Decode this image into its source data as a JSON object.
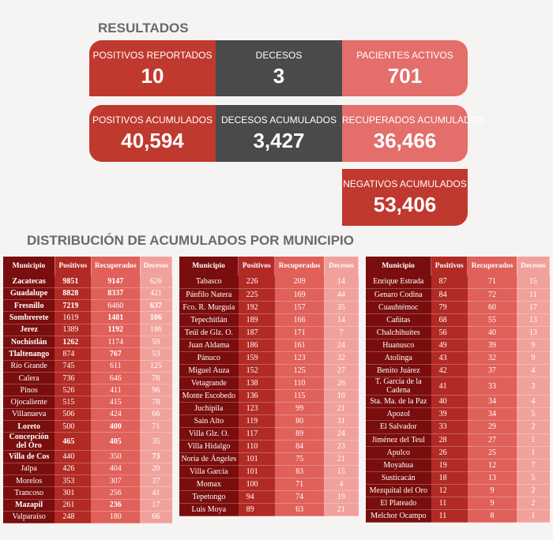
{
  "heading_results": "RESULTADOS",
  "heading_distribution": "DISTRIBUCIÓN DE ACUMULADOS POR MUNICIPIO",
  "cards": {
    "positivos_reportados": {
      "label": "POSITIVOS REPORTADOS",
      "value": "10",
      "color": "#c0392f"
    },
    "decesos": {
      "label": "DECESOS",
      "value": "3",
      "color": "#4a4a4a"
    },
    "pacientes_activos": {
      "label": "PACIENTES ACTIVOS",
      "value": "701",
      "color": "#e36e6a"
    },
    "positivos_acumulados": {
      "label": "POSITIVOS ACUMULADOS",
      "value": "40,594",
      "color": "#c0392f"
    },
    "decesos_acumulados": {
      "label": "DECESOS ACUMULADOS",
      "value": "3,427",
      "color": "#4a4a4a"
    },
    "recuperados_acumulados": {
      "label": "RECUPERADOS ACUMULADOS",
      "value": "36,466",
      "color": "#e36e6a"
    },
    "negativos_acumulados": {
      "label": "NEGATIVOS ACUMULADOS",
      "value": "53,406",
      "color": "#c0392f"
    }
  },
  "chart_data": {
    "type": "table",
    "columns": [
      "Municipio",
      "Positivos",
      "Recuperados",
      "Decesos"
    ],
    "tables": [
      {
        "rows": [
          [
            "Zacatecas",
            9851,
            9147,
            626
          ],
          [
            "Guadalupe",
            8828,
            8337,
            421
          ],
          [
            "Fresnillo",
            7219,
            6460,
            637
          ],
          [
            "Sombrerete",
            1619,
            1481,
            106
          ],
          [
            "Jerez",
            1389,
            1192,
            186
          ],
          [
            "Nochistlán",
            1262,
            1174,
            59
          ],
          [
            "Tlaltenango",
            874,
            767,
            53
          ],
          [
            "Río Grande",
            745,
            611,
            125
          ],
          [
            "Calera",
            736,
            646,
            78
          ],
          [
            "Pinos",
            526,
            411,
            96
          ],
          [
            "Ojocaliente",
            515,
            415,
            78
          ],
          [
            "Villanueva",
            506,
            424,
            66
          ],
          [
            "Loreto",
            500,
            400,
            71
          ],
          [
            "Concepción del Oro",
            465,
            405,
            35
          ],
          [
            "Villa de Cos",
            440,
            350,
            73
          ],
          [
            "Jalpa",
            426,
            404,
            20
          ],
          [
            "Morelos",
            353,
            307,
            37
          ],
          [
            "Trancoso",
            301,
            256,
            41
          ],
          [
            "Mazapil",
            261,
            236,
            17
          ],
          [
            "Valparaíso",
            248,
            180,
            66
          ]
        ]
      },
      {
        "rows": [
          [
            "Tabasco",
            226,
            209,
            14
          ],
          [
            "Pánfilo Natera",
            225,
            169,
            44
          ],
          [
            "Fco. R. Murguía",
            192,
            157,
            35
          ],
          [
            "Tepechitlán",
            189,
            166,
            14
          ],
          [
            "Teúl de Glz. O.",
            187,
            171,
            7
          ],
          [
            "Juan Aldama",
            186,
            161,
            24
          ],
          [
            "Pánuco",
            159,
            123,
            32
          ],
          [
            "Miguel Auza",
            152,
            125,
            27
          ],
          [
            "Vetagrande",
            138,
            110,
            26
          ],
          [
            "Monte Escobedo",
            136,
            115,
            10
          ],
          [
            "Juchipila",
            123,
            99,
            21
          ],
          [
            "Sain Alto",
            119,
            80,
            31
          ],
          [
            "Villa Glz. O.",
            117,
            89,
            24
          ],
          [
            "Villa Hidalgo",
            110,
            84,
            23
          ],
          [
            "Noria de Ángeles",
            101,
            75,
            21
          ],
          [
            "Villa García",
            101,
            83,
            15
          ],
          [
            "Momax",
            100,
            71,
            4
          ],
          [
            "Tepetongo",
            94,
            74,
            19
          ],
          [
            "Luis Moya",
            89,
            63,
            21
          ]
        ]
      },
      {
        "rows": [
          [
            "Enrique Estrada",
            87,
            71,
            15
          ],
          [
            "Genaro Codina",
            84,
            72,
            11
          ],
          [
            "Cuauhtémoc",
            79,
            60,
            17
          ],
          [
            "Cañitas",
            68,
            55,
            13
          ],
          [
            "Chalchihuites",
            56,
            40,
            13
          ],
          [
            "Huanusco",
            49,
            39,
            9
          ],
          [
            "Atolinga",
            43,
            32,
            9
          ],
          [
            "Benito Juárez",
            42,
            37,
            4
          ],
          [
            "T. García de la Cadena",
            41,
            33,
            3
          ],
          [
            "Sta. Ma. de la Paz",
            40,
            34,
            4
          ],
          [
            "Apozol",
            39,
            34,
            5
          ],
          [
            "El Salvador",
            33,
            29,
            2
          ],
          [
            "Jiménez del Teul",
            28,
            27,
            1
          ],
          [
            "Apulco",
            26,
            25,
            1
          ],
          [
            "Moyahua",
            19,
            12,
            7
          ],
          [
            "Susticacán",
            18,
            13,
            5
          ],
          [
            "Mezquital del Oro",
            12,
            9,
            2
          ],
          [
            "El Plateado",
            11,
            9,
            2
          ],
          [
            "Melchor Ocampo",
            11,
            8,
            1
          ]
        ]
      }
    ]
  }
}
